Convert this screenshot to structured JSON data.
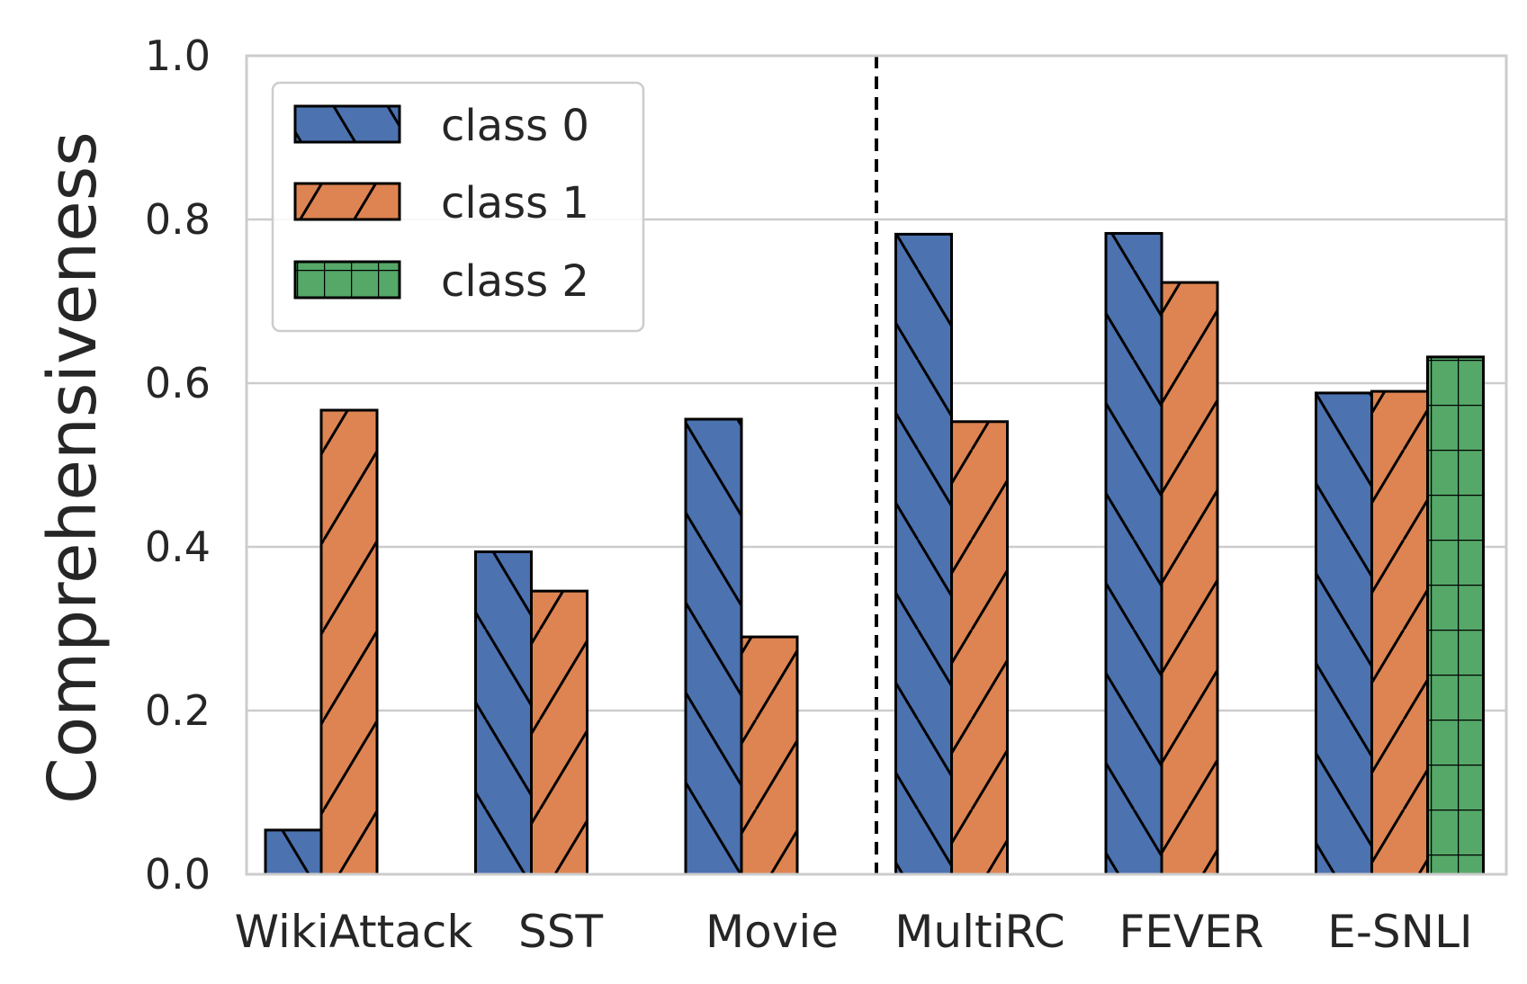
{
  "chart_data": {
    "type": "bar",
    "title": "",
    "xlabel": "",
    "ylabel": "Comprehensiveness",
    "ylim": [
      0,
      1.0
    ],
    "yticks": [
      "0.0",
      "0.2",
      "0.4",
      "0.6",
      "0.8",
      "1.0"
    ],
    "grid": true,
    "legend_position": "top-left",
    "categories": [
      "WikiAttack",
      "SST",
      "Movie",
      "MultiRC",
      "FEVER",
      "E-SNLI"
    ],
    "divider_after_category": "Movie",
    "series": [
      {
        "name": "class 0",
        "color": "#4c72b0",
        "hatch": "backslash",
        "values": [
          0.054,
          0.394,
          0.556,
          0.782,
          0.783,
          0.588
        ]
      },
      {
        "name": "class 1",
        "color": "#dd8452",
        "hatch": "slash",
        "values": [
          0.567,
          0.346,
          0.29,
          0.553,
          0.723,
          0.59
        ]
      },
      {
        "name": "class 2",
        "color": "#55a868",
        "hatch": "grid",
        "values": [
          null,
          null,
          null,
          null,
          null,
          0.632
        ]
      }
    ]
  }
}
